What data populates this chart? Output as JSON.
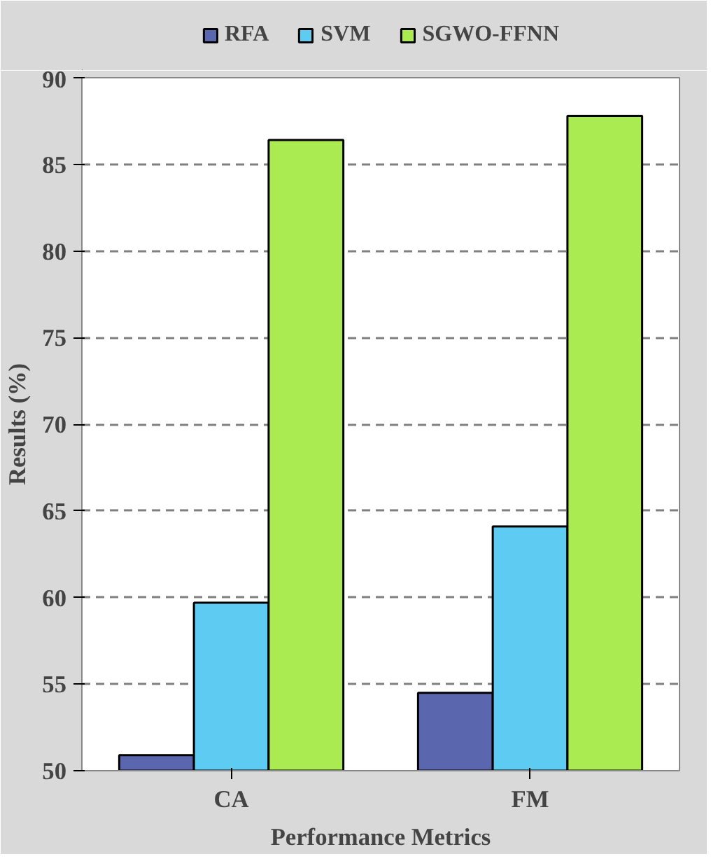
{
  "chart_data": {
    "type": "bar",
    "xlabel": "Performance Metrics",
    "ylabel": "Results (%)",
    "categories": [
      "CA",
      "FM"
    ],
    "series": [
      {
        "name": "RFA",
        "color": "#5a67ae",
        "values": [
          50.9,
          54.5
        ]
      },
      {
        "name": "SVM",
        "color": "#5ecbf2",
        "values": [
          59.7,
          64.1
        ]
      },
      {
        "name": "SGWO-FFNN",
        "color": "#aaeb52",
        "values": [
          86.4,
          87.8
        ]
      }
    ],
    "ylim": [
      50,
      90
    ],
    "yticks": [
      50,
      55,
      60,
      65,
      70,
      75,
      80,
      85,
      90
    ],
    "grid": "y",
    "legend": "top"
  }
}
